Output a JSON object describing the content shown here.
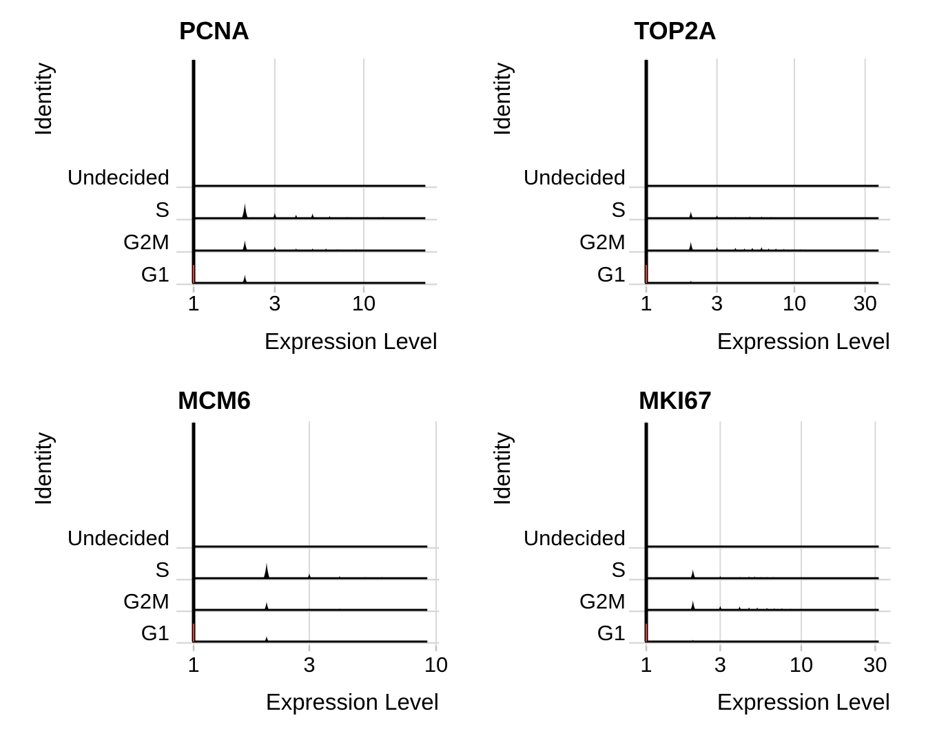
{
  "figure": {
    "x_axis_title": "Expression Level",
    "y_axis_title": "Identity",
    "categories_top_to_bottom": [
      "Undecided",
      "S",
      "G2M",
      "G1"
    ],
    "peak_height_units": "px"
  },
  "colors": {
    "background": "#ffffff",
    "ridge_outline": "#000000",
    "grid": "#d9d9d9",
    "tick_mark": "#c4c4c4",
    "g1_fill": "#e8433a",
    "text": "#000000"
  },
  "chart_data": [
    {
      "type": "ridgeline",
      "title": "PCNA",
      "xlabel": "Expression Level",
      "ylabel": "Identity",
      "x_scale": "log10",
      "x_ticks": [
        1,
        3,
        10
      ],
      "x_range": [
        1,
        23
      ],
      "spike": {
        "x": 1,
        "full_height": true
      },
      "categories": [
        "Undecided",
        "S",
        "G2M",
        "G1"
      ],
      "rows": [
        {
          "category": "Undecided",
          "peaks": []
        },
        {
          "category": "S",
          "peaks": [
            [
              2,
              22
            ],
            [
              3,
              8
            ],
            [
              4,
              5
            ],
            [
              5,
              7
            ],
            [
              6.3,
              3
            ],
            [
              8,
              2
            ],
            [
              10.5,
              2
            ],
            [
              13,
              2
            ],
            [
              16,
              1.5
            ]
          ]
        },
        {
          "category": "G2M",
          "peaks": [
            [
              2,
              15
            ],
            [
              3,
              6
            ],
            [
              4,
              3
            ],
            [
              5,
              3
            ],
            [
              6,
              3
            ],
            [
              7,
              2
            ],
            [
              9,
              2
            ],
            [
              11,
              1.5
            ],
            [
              14,
              1.5
            ],
            [
              17,
              1.5
            ]
          ]
        },
        {
          "category": "G1",
          "peaks": [
            [
              2,
              12
            ],
            [
              3,
              2
            ],
            [
              4,
              1.5
            ],
            [
              5,
              1.5
            ]
          ]
        }
      ]
    },
    {
      "type": "ridgeline",
      "title": "TOP2A",
      "xlabel": "Expression Level",
      "ylabel": "Identity",
      "x_scale": "log10",
      "x_ticks": [
        1,
        3,
        10,
        30
      ],
      "x_range": [
        1,
        37
      ],
      "spike": {
        "x": 1,
        "full_height": true
      },
      "categories": [
        "Undecided",
        "S",
        "G2M",
        "G1"
      ],
      "rows": [
        {
          "category": "Undecided",
          "peaks": []
        },
        {
          "category": "S",
          "peaks": [
            [
              2,
              10
            ],
            [
              3,
              4
            ],
            [
              4,
              2
            ],
            [
              5,
              2.5
            ],
            [
              6,
              2.5
            ],
            [
              7,
              2
            ],
            [
              9,
              1.5
            ],
            [
              13,
              1.5
            ]
          ]
        },
        {
          "category": "G2M",
          "peaks": [
            [
              2,
              13
            ],
            [
              3,
              5
            ],
            [
              4,
              4
            ],
            [
              4.6,
              3
            ],
            [
              5.2,
              4
            ],
            [
              6,
              5
            ],
            [
              6.7,
              3
            ],
            [
              7.5,
              3
            ],
            [
              8.5,
              2.5
            ],
            [
              10,
              2
            ],
            [
              11,
              2
            ],
            [
              13,
              1.5
            ],
            [
              15,
              1.5
            ],
            [
              17,
              1.5
            ],
            [
              19,
              1.5
            ],
            [
              22,
              1.5
            ]
          ]
        },
        {
          "category": "G1",
          "peaks": [
            [
              2,
              3
            ],
            [
              3.5,
              1.5
            ],
            [
              7,
              1
            ],
            [
              13,
              1
            ]
          ]
        }
      ]
    },
    {
      "type": "ridgeline",
      "title": "MCM6",
      "xlabel": "Expression Level",
      "ylabel": "Identity",
      "x_scale": "log10",
      "x_ticks": [
        1,
        3,
        10
      ],
      "x_range": [
        1,
        9.2
      ],
      "spike": {
        "x": 1,
        "full_height": true
      },
      "categories": [
        "Undecided",
        "S",
        "G2M",
        "G1"
      ],
      "rows": [
        {
          "category": "Undecided",
          "peaks": []
        },
        {
          "category": "S",
          "peaks": [
            [
              2,
              23
            ],
            [
              3,
              7
            ],
            [
              4,
              3
            ],
            [
              5.1,
              2
            ],
            [
              6,
              2
            ],
            [
              7,
              1.5
            ]
          ]
        },
        {
          "category": "G2M",
          "peaks": [
            [
              2,
              12
            ],
            [
              3,
              2
            ],
            [
              4,
              2
            ],
            [
              5,
              1.5
            ],
            [
              6,
              1.5
            ],
            [
              7,
              1.5
            ]
          ]
        },
        {
          "category": "G1",
          "peaks": [
            [
              2,
              8
            ],
            [
              3,
              1.5
            ],
            [
              4,
              1.5
            ]
          ]
        }
      ]
    },
    {
      "type": "ridgeline",
      "title": "MKI67",
      "xlabel": "Expression Level",
      "ylabel": "Identity",
      "x_scale": "log10",
      "x_ticks": [
        1,
        3,
        10,
        30
      ],
      "x_range": [
        1,
        31.6
      ],
      "spike": {
        "x": 1,
        "full_height": true
      },
      "categories": [
        "Undecided",
        "S",
        "G2M",
        "G1"
      ],
      "rows": [
        {
          "category": "Undecided",
          "peaks": []
        },
        {
          "category": "S",
          "peaks": [
            [
              2,
              13
            ],
            [
              3,
              3
            ],
            [
              4,
              2
            ],
            [
              4.6,
              2.5
            ],
            [
              5,
              2.5
            ],
            [
              5.5,
              2
            ],
            [
              6,
              2
            ],
            [
              6.6,
              2
            ],
            [
              7.3,
              1.5
            ],
            [
              8.5,
              1.5
            ],
            [
              10,
              1.5
            ],
            [
              12,
              1.5
            ]
          ]
        },
        {
          "category": "G2M",
          "peaks": [
            [
              2,
              14
            ],
            [
              3,
              6
            ],
            [
              4,
              5
            ],
            [
              4.6,
              3.5
            ],
            [
              5.2,
              3.5
            ],
            [
              6,
              3
            ],
            [
              6.7,
              2.5
            ],
            [
              7.5,
              2.5
            ],
            [
              8.5,
              2
            ],
            [
              9.5,
              1.5
            ],
            [
              10.5,
              1.5
            ],
            [
              11.5,
              1.5
            ],
            [
              12.5,
              1.5
            ],
            [
              14,
              1.5
            ],
            [
              16,
              1.5
            ],
            [
              18,
              1.5
            ],
            [
              20,
              1.5
            ]
          ]
        },
        {
          "category": "G1",
          "peaks": [
            [
              2,
              2.5
            ],
            [
              5.5,
              1
            ],
            [
              9,
              1
            ]
          ]
        }
      ]
    }
  ]
}
